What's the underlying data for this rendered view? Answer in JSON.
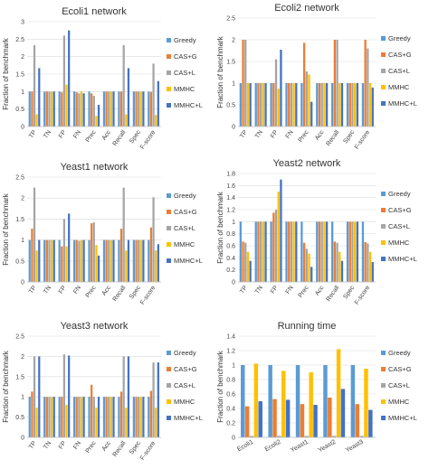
{
  "colors": {
    "greedy": "#5b9bd5",
    "cas_g": "#ed7d31",
    "cas_l": "#a5a5a5",
    "mmhc": "#ffc000",
    "mmhc_l": "#4472c4",
    "grid": "#d9d9d9",
    "axis": "#bfbfbf"
  },
  "ylabel": "Fraction of  benchmark",
  "legend": [
    "Greedy",
    "CAS+G",
    "CAS+L",
    "MMHC",
    "MMHC+L"
  ],
  "chart_data": [
    {
      "type": "bar",
      "title": "Ecoli1 network",
      "ylabel": "Fraction of  benchmark",
      "categories": [
        "TP",
        "TN",
        "FP",
        "FN",
        "Prec",
        "Acc",
        "Recall",
        "Spec",
        "F-score"
      ],
      "ylim": [
        0,
        3
      ],
      "yticks": [
        "0",
        "0.5",
        "1",
        "1.5",
        "2",
        "2.5",
        "3"
      ],
      "yticks_values": [
        0,
        0.5,
        1,
        1.5,
        2,
        2.5,
        3
      ],
      "series": [
        {
          "name": "Greedy",
          "values": [
            1,
            1,
            1,
            1,
            1,
            1,
            1,
            1,
            1
          ]
        },
        {
          "name": "CAS+G",
          "values": [
            1.0,
            1,
            0.98,
            0.98,
            0.95,
            1,
            1.0,
            1,
            0.99
          ]
        },
        {
          "name": "CAS+L",
          "values": [
            2.33,
            1,
            2.6,
            0.95,
            0.88,
            1,
            2.33,
            1,
            1.8
          ]
        },
        {
          "name": "MMHC",
          "values": [
            0.35,
            1,
            1.2,
            1.0,
            0.3,
            1,
            0.35,
            1,
            0.33
          ]
        },
        {
          "name": "MMHC+L",
          "values": [
            1.67,
            1,
            2.75,
            0.95,
            0.62,
            1,
            1.67,
            1,
            1.3
          ]
        }
      ],
      "legend_position": "right",
      "grid": true
    },
    {
      "type": "bar",
      "title": "Ecoli2 network",
      "ylabel": "Fraction of  benchmark",
      "categories": [
        "TP",
        "TN",
        "FP",
        "FN",
        "Prec",
        "Acc",
        "Recall",
        "Spec",
        "F-score"
      ],
      "ylim": [
        0,
        2.5
      ],
      "yticks": [
        "0",
        "0.5",
        "1",
        "1.5",
        "2",
        "2.5"
      ],
      "yticks_values": [
        0,
        0.5,
        1,
        1.5,
        2,
        2.5
      ],
      "series": [
        {
          "name": "Greedy",
          "values": [
            1,
            1,
            1,
            1,
            1,
            1,
            1,
            1,
            1
          ]
        },
        {
          "name": "CAS+G",
          "values": [
            2.0,
            1,
            1.0,
            1.0,
            1.93,
            1,
            2.0,
            1,
            2.0
          ]
        },
        {
          "name": "CAS+L",
          "values": [
            2.0,
            1,
            1.55,
            1.0,
            1.27,
            1,
            2.0,
            1,
            1.8
          ]
        },
        {
          "name": "MMHC",
          "values": [
            1.0,
            1,
            0.87,
            1.0,
            1.2,
            1,
            1.0,
            1,
            1.0
          ]
        },
        {
          "name": "MMHC+L",
          "values": [
            1.0,
            1,
            1.77,
            1.0,
            0.57,
            1,
            1.0,
            1,
            0.9
          ]
        }
      ],
      "legend_position": "right",
      "grid": true
    },
    {
      "type": "bar",
      "title": "Yeast1 network",
      "ylabel": "Fraction of  benchmark",
      "categories": [
        "TP",
        "TN",
        "FP",
        "FN",
        "Prec",
        "Acc",
        "Recall",
        "Spec",
        "F-score"
      ],
      "ylim": [
        0,
        2.5
      ],
      "yticks": [
        "0",
        "0.5",
        "1",
        "1.5",
        "2",
        "2.5"
      ],
      "yticks_values": [
        0,
        0.5,
        1,
        1.5,
        2,
        2.5
      ],
      "series": [
        {
          "name": "Greedy",
          "values": [
            1,
            1,
            1,
            1,
            1,
            1,
            1,
            1,
            1
          ]
        },
        {
          "name": "CAS+G",
          "values": [
            1.27,
            1,
            0.85,
            1.0,
            1.4,
            1,
            1.27,
            1,
            1.3
          ]
        },
        {
          "name": "CAS+L",
          "values": [
            2.25,
            1,
            1.5,
            0.98,
            1.42,
            1,
            2.25,
            1,
            2.02
          ]
        },
        {
          "name": "MMHC",
          "values": [
            0.75,
            1,
            0.85,
            1.0,
            0.88,
            1,
            0.75,
            1,
            0.75
          ]
        },
        {
          "name": "MMHC+L",
          "values": [
            1.0,
            1,
            1.63,
            1.0,
            0.63,
            1,
            1.0,
            1,
            0.9
          ]
        }
      ],
      "legend_position": "right",
      "grid": true
    },
    {
      "type": "bar",
      "title": "Yeast2 network",
      "ylabel": "Fraction of  benchmark",
      "categories": [
        "TP",
        "TN",
        "FP",
        "FN",
        "Prec",
        "Acc",
        "Recall",
        "Spec",
        "F-score"
      ],
      "ylim": [
        0,
        1.8
      ],
      "yticks": [
        "0",
        "0.2",
        "0.4",
        "0.6",
        "0.8",
        "1",
        "1.2",
        "1.4",
        "1.6",
        "1.8"
      ],
      "yticks_values": [
        0,
        0.2,
        0.4,
        0.6,
        0.8,
        1,
        1.2,
        1.4,
        1.6,
        1.8
      ],
      "series": [
        {
          "name": "Greedy",
          "values": [
            1,
            1,
            1,
            1,
            1,
            1,
            1,
            1,
            1
          ]
        },
        {
          "name": "CAS+G",
          "values": [
            0.67,
            1,
            1.15,
            1.0,
            0.65,
            1,
            0.67,
            1,
            0.66
          ]
        },
        {
          "name": "CAS+L",
          "values": [
            0.65,
            1,
            1.2,
            1.0,
            0.55,
            1,
            0.65,
            1,
            0.64
          ]
        },
        {
          "name": "MMHC",
          "values": [
            0.5,
            1,
            1.5,
            1.0,
            0.47,
            1,
            0.5,
            1,
            0.5
          ]
        },
        {
          "name": "MMHC+L",
          "values": [
            0.35,
            1,
            1.7,
            1.0,
            0.25,
            1,
            0.35,
            1,
            0.33
          ]
        }
      ],
      "legend_position": "right",
      "grid": true
    },
    {
      "type": "bar",
      "title": "Yeast3 network",
      "ylabel": "Fraction of  benchmark",
      "categories": [
        "TP",
        "TN",
        "FP",
        "FN",
        "Prec",
        "Acc",
        "Recall",
        "Spec",
        "F-score"
      ],
      "ylim": [
        0,
        2.5
      ],
      "yticks": [
        "0",
        "0.5",
        "1",
        "1.5",
        "2",
        "2.5"
      ],
      "yticks_values": [
        0,
        0.5,
        1,
        1.5,
        2,
        2.5
      ],
      "series": [
        {
          "name": "Greedy",
          "values": [
            1,
            1,
            1,
            1,
            1,
            1,
            1,
            1,
            1
          ]
        },
        {
          "name": "CAS+G",
          "values": [
            1.13,
            1,
            1.0,
            1.0,
            1.3,
            1,
            1.13,
            1,
            1.15
          ]
        },
        {
          "name": "CAS+L",
          "values": [
            2.0,
            1,
            2.05,
            1.0,
            1.0,
            1,
            2.0,
            1,
            1.85
          ]
        },
        {
          "name": "MMHC",
          "values": [
            0.73,
            1,
            0.8,
            1.0,
            0.73,
            1,
            0.73,
            1,
            0.73
          ]
        },
        {
          "name": "MMHC+L",
          "values": [
            2.0,
            1,
            2.02,
            1.0,
            1.0,
            1,
            2.0,
            1,
            1.85
          ]
        }
      ],
      "legend_position": "right",
      "grid": true
    },
    {
      "type": "bar",
      "title": "Running time",
      "ylabel": "Fraction of  benchmark",
      "categories": [
        "Ecoli1",
        "Ecoli2",
        "Yeast1",
        "Yeast2",
        "Yeast3"
      ],
      "ylim": [
        0,
        1.4
      ],
      "yticks": [
        "0",
        "0.2",
        "0.4",
        "0.6",
        "0.8",
        "1",
        "1.2",
        "1.4"
      ],
      "yticks_values": [
        0,
        0.2,
        0.4,
        0.6,
        0.8,
        1,
        1.2,
        1.4
      ],
      "series": [
        {
          "name": "Greedy",
          "values": [
            1,
            1,
            1,
            1,
            1
          ]
        },
        {
          "name": "CAS+G",
          "values": [
            0.43,
            0.53,
            0.46,
            0.55,
            0.46
          ]
        },
        {
          "name": "CAS+L",
          "values": [
            0.02,
            0.02,
            0.02,
            0.02,
            0.02
          ]
        },
        {
          "name": "MMHC",
          "values": [
            1.02,
            0.92,
            0.9,
            1.22,
            0.95
          ]
        },
        {
          "name": "MMHC+L",
          "values": [
            0.5,
            0.52,
            0.45,
            0.67,
            0.38
          ]
        }
      ],
      "legend_position": "right",
      "grid": true
    }
  ]
}
